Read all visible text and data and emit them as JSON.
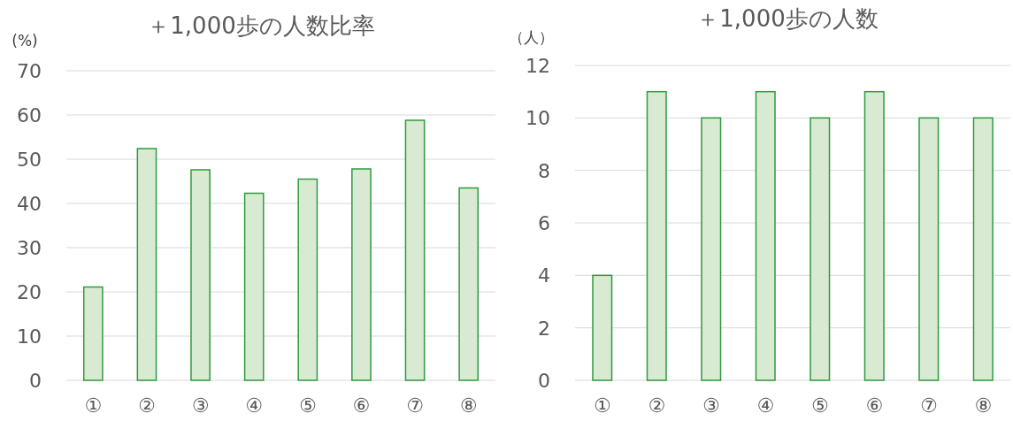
{
  "chart_data": [
    {
      "type": "bar",
      "title": "＋1,000歩の人数比率",
      "ylabel": "(%)",
      "categories": [
        "①",
        "②",
        "③",
        "④",
        "⑤",
        "⑥",
        "⑦",
        "⑧"
      ],
      "values": [
        21.1,
        52.4,
        47.6,
        42.3,
        45.5,
        47.8,
        58.8,
        43.5
      ],
      "color": "#d9ead3",
      "ylim": [
        0,
        70
      ],
      "yticks": [
        0,
        10,
        20,
        30,
        40,
        50,
        60,
        70
      ],
      "grid": "y"
    },
    {
      "type": "bar",
      "title": "＋1,000歩の人数",
      "ylabel": "（人）",
      "categories": [
        "①",
        "②",
        "③",
        "④",
        "⑤",
        "⑥",
        "⑦",
        "⑧"
      ],
      "values": [
        4,
        11,
        10,
        11,
        10,
        11,
        10,
        10
      ],
      "color": "#d9ead3",
      "ylim": [
        0,
        12
      ],
      "yticks": [
        0,
        2,
        4,
        6,
        8,
        10,
        12
      ],
      "grid": "y"
    }
  ]
}
